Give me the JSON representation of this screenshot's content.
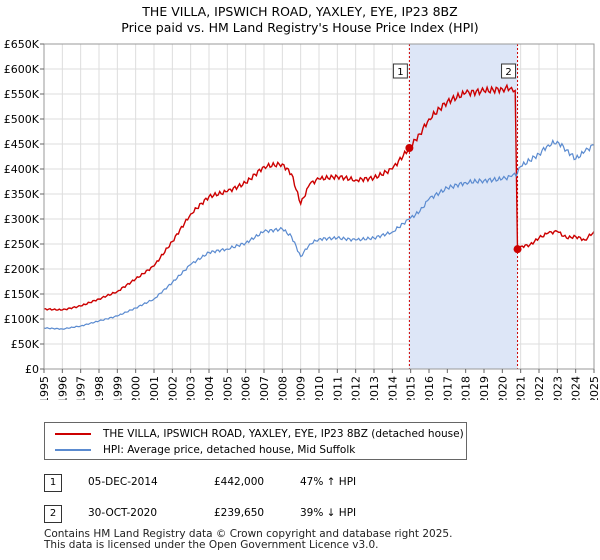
{
  "title_line1": "THE VILLA, IPSWICH ROAD, YAXLEY, EYE, IP23 8BZ",
  "title_line2": "Price paid vs. HM Land Registry's House Price Index (HPI)",
  "colors": {
    "property": "#cc0000",
    "hpi": "#5b8bd0",
    "shade": "#dde6f7",
    "grid": "#dddddd"
  },
  "chart_data": {
    "type": "line",
    "xlim": [
      1995,
      2025
    ],
    "ylim": [
      0,
      650000
    ],
    "x_ticks": [
      1995,
      1996,
      1997,
      1998,
      1999,
      2000,
      2001,
      2002,
      2003,
      2004,
      2005,
      2006,
      2007,
      2008,
      2009,
      2010,
      2011,
      2012,
      2013,
      2014,
      2015,
      2016,
      2017,
      2018,
      2019,
      2020,
      2021,
      2022,
      2023,
      2024,
      2025
    ],
    "x_tick_labels": [
      "1995",
      "1996",
      "1997",
      "1998",
      "1999",
      "2000",
      "2001",
      "2002",
      "2003",
      "2004",
      "2005",
      "2006",
      "2007",
      "2008",
      "2009",
      "2010",
      "2011",
      "2012",
      "2013",
      "2014",
      "2015",
      "2016",
      "2017",
      "2018",
      "2019",
      "2020",
      "2021",
      "2022",
      "2023",
      "2024",
      "2025"
    ],
    "y_ticks": [
      0,
      50000,
      100000,
      150000,
      200000,
      250000,
      300000,
      350000,
      400000,
      450000,
      500000,
      550000,
      600000,
      650000
    ],
    "y_tick_labels": [
      "£0",
      "£50K",
      "£100K",
      "£150K",
      "£200K",
      "£250K",
      "£300K",
      "£350K",
      "£400K",
      "£450K",
      "£500K",
      "£550K",
      "£600K",
      "£650K"
    ],
    "shaded_range": [
      2014.93,
      2020.83
    ],
    "series": [
      {
        "name": "THE VILLA, IPSWICH ROAD, YAXLEY, EYE, IP23 8BZ (detached house)",
        "color": "#cc0000",
        "points": [
          [
            1995,
            120000
          ],
          [
            1996,
            118000
          ],
          [
            1997,
            126000
          ],
          [
            1998,
            140000
          ],
          [
            1999,
            155000
          ],
          [
            2000,
            180000
          ],
          [
            2001,
            206000
          ],
          [
            2002,
            255000
          ],
          [
            2003,
            310000
          ],
          [
            2004,
            345000
          ],
          [
            2005,
            355000
          ],
          [
            2006,
            372000
          ],
          [
            2007,
            405000
          ],
          [
            2008,
            410000
          ],
          [
            2008.5,
            390000
          ],
          [
            2009,
            330000
          ],
          [
            2009.5,
            370000
          ],
          [
            2010,
            380000
          ],
          [
            2011,
            385000
          ],
          [
            2012,
            378000
          ],
          [
            2013,
            382000
          ],
          [
            2014,
            400000
          ],
          [
            2014.93,
            442000
          ],
          [
            2015.5,
            470000
          ],
          [
            2016,
            500000
          ],
          [
            2017,
            535000
          ],
          [
            2018,
            552000
          ],
          [
            2019,
            556000
          ],
          [
            2020,
            560000
          ],
          [
            2020.5,
            563000
          ],
          [
            2020.7,
            557000
          ],
          [
            2020.83,
            239650
          ],
          [
            2021,
            245000
          ],
          [
            2021.5,
            248000
          ],
          [
            2022,
            262000
          ],
          [
            2022.5,
            272000
          ],
          [
            2023,
            275000
          ],
          [
            2023.5,
            262000
          ],
          [
            2024,
            265000
          ],
          [
            2024.5,
            258000
          ],
          [
            2025,
            275000
          ]
        ]
      },
      {
        "name": "HPI: Average price, detached house, Mid Suffolk",
        "color": "#5b8bd0",
        "points": [
          [
            1995,
            82000
          ],
          [
            1996,
            80000
          ],
          [
            1997,
            86000
          ],
          [
            1998,
            96000
          ],
          [
            1999,
            106000
          ],
          [
            2000,
            122000
          ],
          [
            2001,
            140000
          ],
          [
            2002,
            173000
          ],
          [
            2003,
            209000
          ],
          [
            2004,
            233000
          ],
          [
            2005,
            240000
          ],
          [
            2006,
            252000
          ],
          [
            2007,
            275000
          ],
          [
            2008,
            280000
          ],
          [
            2008.5,
            265000
          ],
          [
            2009,
            225000
          ],
          [
            2009.5,
            250000
          ],
          [
            2010,
            260000
          ],
          [
            2011,
            262000
          ],
          [
            2012,
            258000
          ],
          [
            2013,
            262000
          ],
          [
            2014,
            274000
          ],
          [
            2014.93,
            300000
          ],
          [
            2015.5,
            315000
          ],
          [
            2016,
            340000
          ],
          [
            2017,
            362000
          ],
          [
            2018,
            373000
          ],
          [
            2019,
            377000
          ],
          [
            2020,
            380000
          ],
          [
            2020.5,
            385000
          ],
          [
            2020.83,
            392000
          ],
          [
            2021,
            405000
          ],
          [
            2022,
            430000
          ],
          [
            2022.5,
            448000
          ],
          [
            2023,
            455000
          ],
          [
            2023.5,
            438000
          ],
          [
            2024,
            420000
          ],
          [
            2024.5,
            435000
          ],
          [
            2025,
            448000
          ]
        ]
      }
    ],
    "markers": [
      {
        "label": "1",
        "x": 2014.93,
        "y": 442000
      },
      {
        "label": "2",
        "x": 2020.83,
        "y": 239650
      }
    ]
  },
  "legend": {
    "property_label": "THE VILLA, IPSWICH ROAD, YAXLEY, EYE, IP23 8BZ (detached house)",
    "hpi_label": "HPI: Average price, detached house, Mid Suffolk"
  },
  "transactions": [
    {
      "num": "1",
      "date": "05-DEC-2014",
      "price": "£442,000",
      "hpi": "47% ↑ HPI"
    },
    {
      "num": "2",
      "date": "30-OCT-2020",
      "price": "£239,650",
      "hpi": "39% ↓ HPI"
    }
  ],
  "footer": {
    "line1": "Contains HM Land Registry data © Crown copyright and database right 2025.",
    "line2": "This data is licensed under the Open Government Licence v3.0."
  }
}
